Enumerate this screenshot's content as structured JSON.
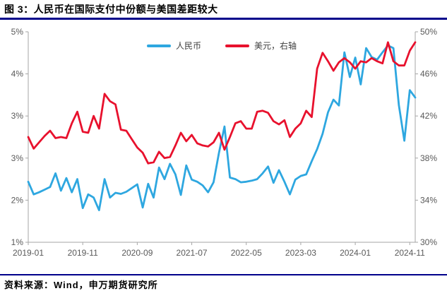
{
  "header": {
    "title": "图 3：人民币在国际支付中份额与美国差距较大"
  },
  "footer": {
    "source": "资料来源：Wind，申万期货研究所"
  },
  "colors": {
    "accent_rule": "#00008B",
    "rmb_line": "#2EA7E0",
    "usd_line": "#E8112D",
    "axis_line": "#A6A6A6",
    "tick_text": "#595959",
    "legend_text": "#404040"
  },
  "chart_data": {
    "type": "line",
    "title": "人民币在国际支付中份额与美国差距较大",
    "grid": false,
    "legend_position": "top-center",
    "x": [
      "2019-01",
      "2019-02",
      "2019-03",
      "2019-04",
      "2019-05",
      "2019-06",
      "2019-07",
      "2019-08",
      "2019-09",
      "2019-10",
      "2019-11",
      "2019-12",
      "2020-01",
      "2020-02",
      "2020-03",
      "2020-04",
      "2020-05",
      "2020-06",
      "2020-07",
      "2020-08",
      "2020-09",
      "2020-10",
      "2020-11",
      "2020-12",
      "2021-01",
      "2021-02",
      "2021-03",
      "2021-04",
      "2021-05",
      "2021-06",
      "2021-07",
      "2021-08",
      "2021-09",
      "2021-10",
      "2021-11",
      "2021-12",
      "2022-01",
      "2022-02",
      "2022-03",
      "2022-04",
      "2022-05",
      "2022-06",
      "2022-07",
      "2022-08",
      "2022-09",
      "2022-10",
      "2022-11",
      "2022-12",
      "2023-01",
      "2023-02",
      "2023-03",
      "2023-04",
      "2023-05",
      "2023-06",
      "2023-07",
      "2023-08",
      "2023-09",
      "2023-10",
      "2023-11",
      "2023-12",
      "2024-01",
      "2024-02",
      "2024-03",
      "2024-04",
      "2024-05",
      "2024-06",
      "2024-07",
      "2024-08",
      "2024-09",
      "2024-10",
      "2024-11",
      "2024-12"
    ],
    "x_tick_labels": [
      "2019-01",
      "2019-11",
      "2020-09",
      "2021-07",
      "2022-05",
      "2023-03",
      "2024-01",
      "2024-11"
    ],
    "left_axis": {
      "min": 1,
      "max": 5,
      "tick_labels": [
        "5%",
        "4%",
        "3%",
        "3%",
        "2%",
        "1%"
      ]
    },
    "right_axis": {
      "min": 30,
      "max": 50,
      "tick_labels": [
        "50%",
        "46%",
        "42%",
        "38%",
        "34%",
        "30%"
      ]
    },
    "series": [
      {
        "name": "人民币",
        "axis": "left",
        "color": "#2EA7E0",
        "values": [
          2.15,
          1.91,
          1.95,
          2.0,
          2.05,
          2.31,
          1.98,
          2.22,
          1.95,
          2.2,
          1.65,
          1.91,
          1.85,
          1.61,
          2.2,
          1.85,
          1.94,
          1.92,
          1.96,
          2.03,
          2.1,
          1.66,
          2.11,
          1.85,
          2.42,
          2.2,
          2.49,
          2.29,
          1.9,
          2.46,
          2.19,
          2.15,
          2.08,
          1.95,
          2.14,
          2.7,
          3.2,
          2.23,
          2.2,
          2.14,
          2.15,
          2.17,
          2.2,
          2.31,
          2.44,
          2.13,
          2.37,
          2.15,
          1.91,
          2.19,
          2.26,
          2.29,
          2.54,
          2.77,
          3.06,
          3.47,
          3.71,
          3.6,
          4.61,
          4.14,
          4.51,
          4.0,
          4.69,
          4.52,
          4.47,
          4.61,
          4.74,
          4.69,
          3.61,
          2.93,
          3.89,
          3.75
        ]
      },
      {
        "name": "美元，右轴",
        "axis": "right",
        "color": "#E8112D",
        "values": [
          40.0,
          38.9,
          39.5,
          40.1,
          40.6,
          39.9,
          40.0,
          39.9,
          41.3,
          42.4,
          40.5,
          40.4,
          42.0,
          40.8,
          44.1,
          43.4,
          43.1,
          40.7,
          40.6,
          39.8,
          39.0,
          38.5,
          37.5,
          37.6,
          38.6,
          38.0,
          38.1,
          39.2,
          40.4,
          39.6,
          40.2,
          39.4,
          39.2,
          39.1,
          39.5,
          40.4,
          38.8,
          40.0,
          41.3,
          41.5,
          40.8,
          40.8,
          42.4,
          42.5,
          42.3,
          41.5,
          41.2,
          41.6,
          40.0,
          40.8,
          41.3,
          42.5,
          41.9,
          46.5,
          48.0,
          47.2,
          46.3,
          47.1,
          47.5,
          47.1,
          46.5,
          47.2,
          47.1,
          47.5,
          47.2,
          47.0,
          49.0,
          47.2,
          46.8,
          46.8,
          48.2,
          49.0
        ]
      }
    ]
  }
}
